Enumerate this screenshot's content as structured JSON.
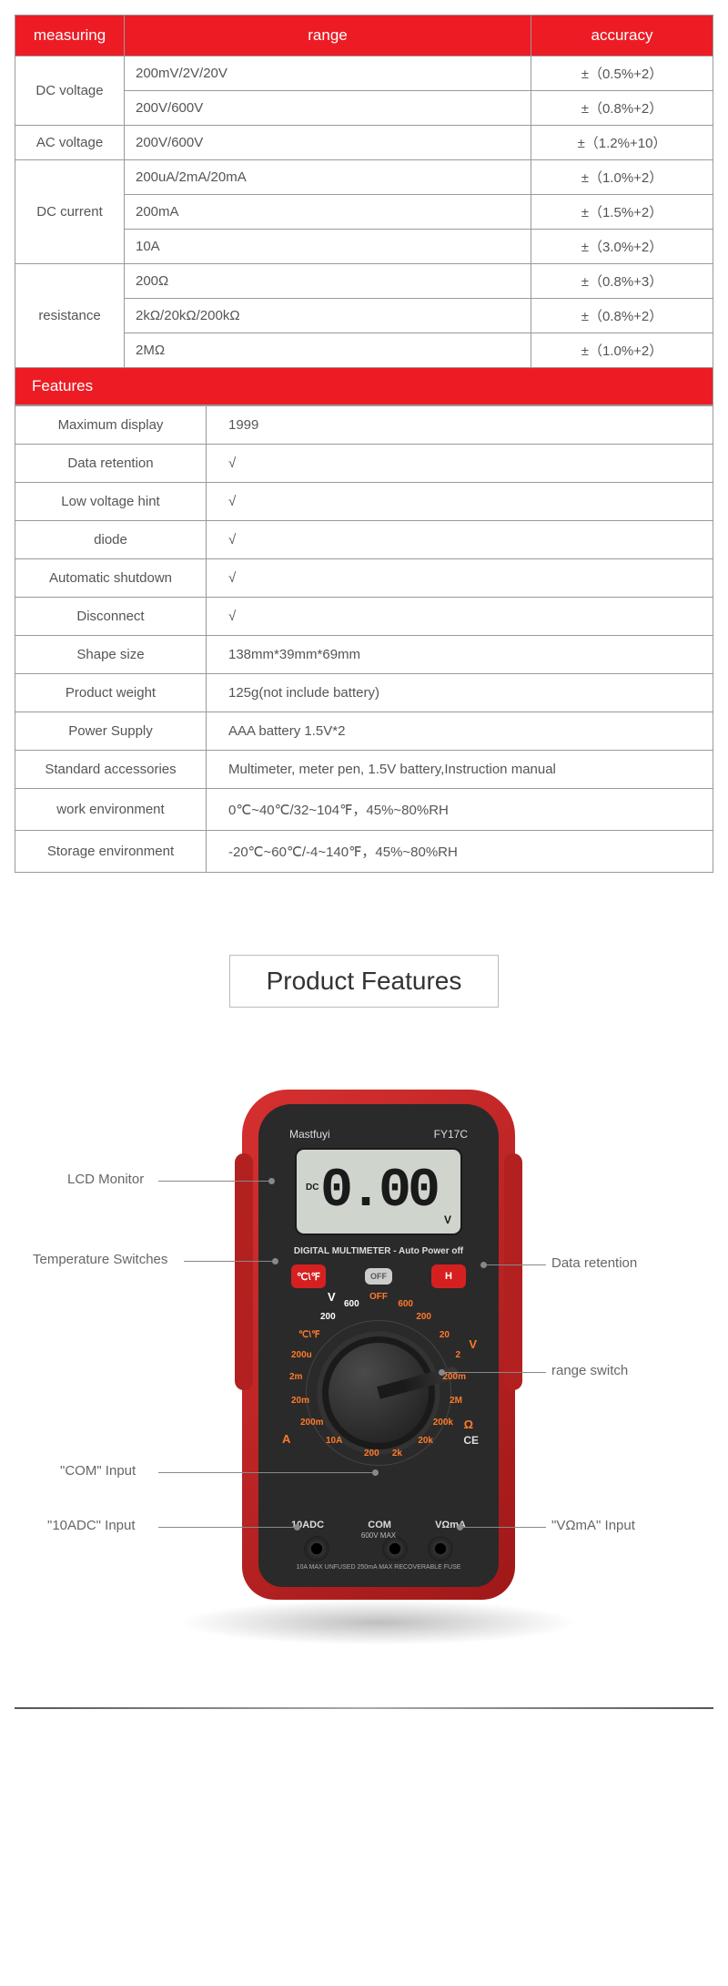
{
  "specs_header": {
    "col1": "measuring",
    "col2": "range",
    "col3": "accuracy"
  },
  "specs": [
    {
      "label": "DC voltage",
      "rows": [
        {
          "range": "200mV/2V/20V",
          "acc": "±（0.5%+2）"
        },
        {
          "range": "200V/600V",
          "acc": "±（0.8%+2）"
        }
      ]
    },
    {
      "label": "AC voltage",
      "rows": [
        {
          "range": "200V/600V",
          "acc": "±（1.2%+10）"
        }
      ]
    },
    {
      "label": "DC current",
      "rows": [
        {
          "range": "200uA/2mA/20mA",
          "acc": "±（1.0%+2）"
        },
        {
          "range": "200mA",
          "acc": "±（1.5%+2）"
        },
        {
          "range": "10A",
          "acc": "±（3.0%+2）"
        }
      ]
    },
    {
      "label": "resistance",
      "rows": [
        {
          "range": "200Ω",
          "acc": "±（0.8%+3）"
        },
        {
          "range": "2kΩ/20kΩ/200kΩ",
          "acc": "±（0.8%+2）"
        },
        {
          "range": "2MΩ",
          "acc": "±（1.0%+2）"
        }
      ]
    }
  ],
  "features_title": "Features",
  "features": [
    {
      "k": "Maximum display",
      "v": "1999"
    },
    {
      "k": "Data retention",
      "v": "√"
    },
    {
      "k": "Low voltage hint",
      "v": "√"
    },
    {
      "k": "diode",
      "v": "√"
    },
    {
      "k": "Automatic shutdown",
      "v": "√"
    },
    {
      "k": "Disconnect",
      "v": "√"
    },
    {
      "k": "Shape size",
      "v": "138mm*39mm*69mm"
    },
    {
      "k": "Product weight",
      "v": "125g(not include battery)"
    },
    {
      "k": "Power Supply",
      "v": "AAA battery 1.5V*2"
    },
    {
      "k": "Standard accessories",
      "v": "Multimeter, meter pen, 1.5V battery,Instruction manual"
    },
    {
      "k": "work environment",
      "v": "0℃~40℃/32~104℉，45%~80%RH"
    },
    {
      "k": "Storage environment",
      "v": "-20℃~60℃/-4~140℉，45%~80%RH"
    }
  ],
  "section_title": "Product Features",
  "device": {
    "brand": "Mastfuyi",
    "model": "FY17C",
    "display": "0.00",
    "dc": "DC",
    "unit": "V",
    "subtitle": "DIGITAL MULTIMETER - Auto Power off",
    "btn_temp": "℃\\℉",
    "btn_off": "OFF",
    "btn_hold": "H",
    "port1": "10ADC",
    "port2": "COM",
    "port3": "VΩmA",
    "maxv": "600V MAX",
    "fuse": "10A MAX UNFUSED        250mA MAX RECOVERABLE FUSE",
    "dial": {
      "l600": "600",
      "l200": "200",
      "l20": "20",
      "l2": "2",
      "l200m": "200m",
      "l2M": "2M",
      "l200k": "200k",
      "l20k": "20k",
      "l2k": "2k",
      "l200o": "200",
      "l10A": "10A",
      "l200mA": "200m",
      "l20m": "20m",
      "l2m": "2m",
      "l200u": "200u",
      "lCF": "℃\\℉",
      "lV": "V",
      "lVac": "V",
      "lA": "A",
      "lOhm": "Ω",
      "lCE": "CE"
    }
  },
  "callouts": {
    "lcd": "LCD Monitor",
    "temp": "Temperature Switches",
    "com": "\"COM\" Input",
    "adc": "\"10ADC\" Input",
    "hold": "Data retention",
    "range": "range switch",
    "voma": "\"VΩmA\" Input"
  }
}
